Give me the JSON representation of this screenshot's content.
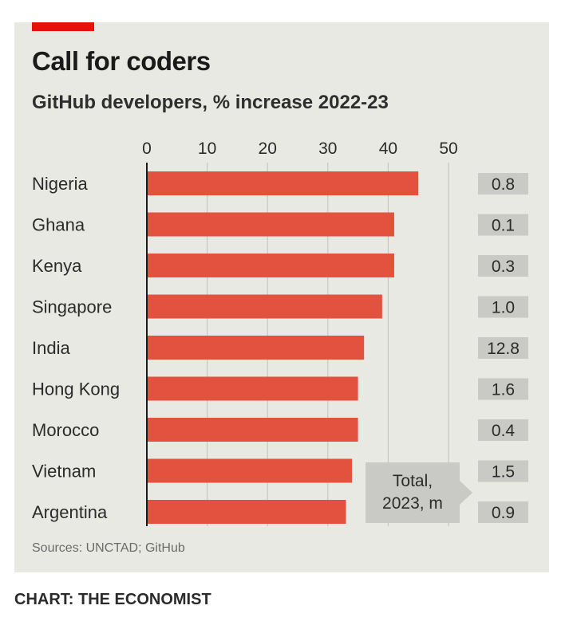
{
  "title": "Call for coders",
  "subtitle": "GitHub developers, % increase 2022-23",
  "source": "Sources: UNCTAD; GitHub",
  "credit": "CHART: THE ECONOMIST",
  "colors": {
    "bar": "#e3513f",
    "accent": "#e3120b",
    "background": "#e9e9e3",
    "box": "#c9c9c5"
  },
  "chart_data": {
    "type": "bar",
    "orientation": "horizontal",
    "categories": [
      "Nigeria",
      "Ghana",
      "Kenya",
      "Singapore",
      "India",
      "Hong Kong",
      "Morocco",
      "Vietnam",
      "Argentina"
    ],
    "values": [
      45,
      41,
      41,
      39,
      36,
      35,
      35,
      34,
      33
    ],
    "xlim": [
      0,
      50
    ],
    "xticks": [
      "0",
      "10",
      "20",
      "30",
      "40",
      "50"
    ],
    "grid": true,
    "totals_label": "Total,\n2023, m",
    "totals": [
      "0.8",
      "0.1",
      "0.3",
      "1.0",
      "12.8",
      "1.6",
      "0.4",
      "1.5",
      "0.9"
    ]
  }
}
